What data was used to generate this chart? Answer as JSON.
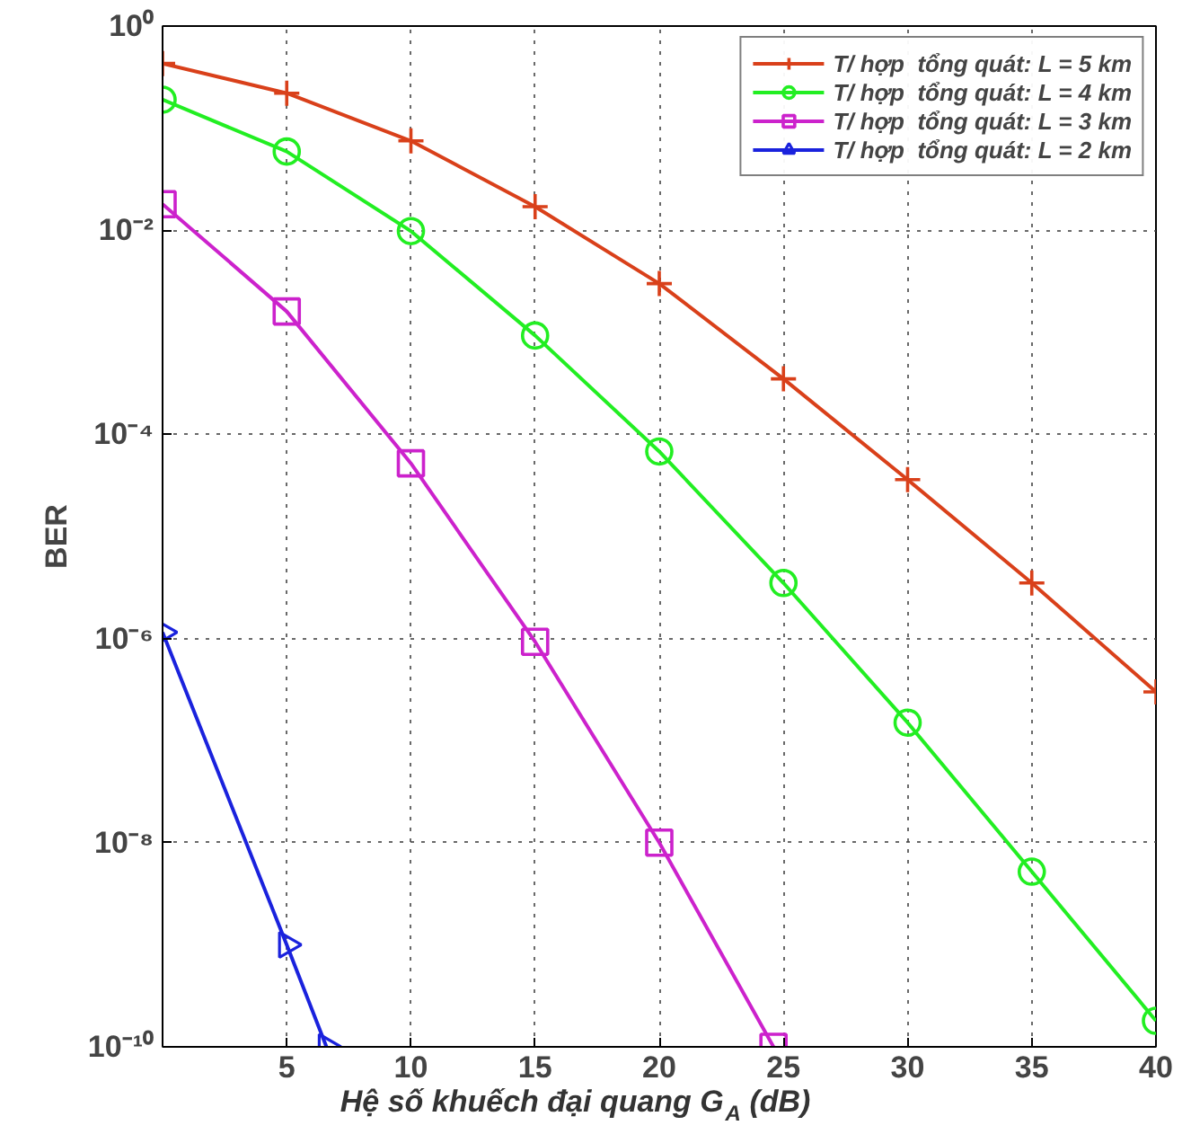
{
  "chart_data": {
    "type": "line",
    "xlabel": "Hệ số khuếch đại quang G$_{A}$ (dB)",
    "ylabel": "BER",
    "log": "y",
    "xlim": [
      0,
      40
    ],
    "xticks": [
      5,
      10,
      15,
      20,
      25,
      30,
      35,
      40
    ],
    "ylim": [
      1e-10,
      1
    ],
    "yticks": [
      {
        "value": 1e-10,
        "label": "10⁻¹⁰"
      },
      {
        "value": 1e-08,
        "label": "10⁻⁸"
      },
      {
        "value": 1e-06,
        "label": "10⁻⁶"
      },
      {
        "value": 0.0001,
        "label": "10⁻⁴"
      },
      {
        "value": 0.01,
        "label": "10⁻²"
      },
      {
        "value": 1,
        "label": "10⁰"
      }
    ],
    "grid": true,
    "legend": "top right",
    "line_style": "solid",
    "series": [
      {
        "name": "T/ hợp  tổng quát: L = 5 km",
        "color": "#d9401a",
        "marker": "cross",
        "x": [
          0,
          5,
          10,
          15,
          20,
          25,
          30,
          35,
          40
        ],
        "values": [
          0.43,
          0.22,
          0.075,
          0.017,
          0.003,
          0.00035,
          3.6e-05,
          3.5e-06,
          3e-07
        ]
      },
      {
        "name": "T/ hợp  tổng quát: L = 4 km",
        "color": "#22ee22",
        "marker": "circle",
        "x": [
          0,
          5,
          10,
          15,
          20,
          25,
          30,
          35,
          40
        ],
        "values": [
          0.19,
          0.059,
          0.0098,
          0.00093,
          6.8e-05,
          3.5e-06,
          1.5e-07,
          5.2e-09,
          1.8e-10
        ]
      },
      {
        "name": "T/ hợp  tổng quát: L = 3 km",
        "color": "#cc22cc",
        "marker": "square",
        "x": [
          0,
          5,
          10,
          15,
          20,
          24.6
        ],
        "values": [
          0.018,
          0.0016,
          5.2e-05,
          9.3e-07,
          1e-08,
          1e-10
        ]
      },
      {
        "name": "T/ hợp  tổng quát: L = 2 km",
        "color": "#1a22dd",
        "marker": "triangle",
        "x": [
          0,
          5,
          6.6
        ],
        "values": [
          1.15e-06,
          1e-09,
          1e-10
        ]
      }
    ]
  }
}
